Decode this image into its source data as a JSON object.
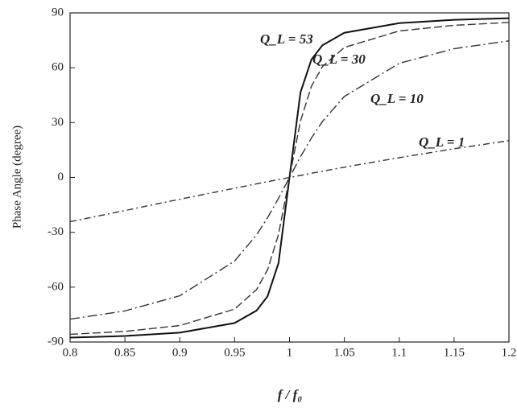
{
  "chart_data": {
    "type": "line",
    "x_label": "f / f₀",
    "y_label": "Phase Angle (degree)",
    "x": [
      0.8,
      0.85,
      0.9,
      0.95,
      0.97,
      0.98,
      0.99,
      1,
      1.01,
      1.02,
      1.03,
      1.05,
      1.1,
      1.15,
      1.2
    ],
    "series": [
      {
        "name": "Q_L = 53",
        "color": "#111",
        "dash": "none",
        "values": [
          -87.6,
          -86.7,
          -84.9,
          -79.6,
          -72.8,
          -65.0,
          -46.8,
          0,
          46.5,
          64.5,
          72.3,
          79.1,
          84.4,
          86.2,
          87.1
        ]
      },
      {
        "name": "Q_L = 30",
        "color": "#333",
        "dash": "10 4",
        "values": [
          -85.8,
          -84.2,
          -81.0,
          -72.0,
          -61.3,
          -50.5,
          -31.1,
          0,
          30.8,
          49.9,
          60.6,
          71.1,
          80.1,
          83.2,
          84.8
        ]
      },
      {
        "name": "Q_L = 10",
        "color": "#333",
        "dash": "12 4 2 4",
        "values": [
          -77.5,
          -73.0,
          -64.7,
          -45.7,
          -31.4,
          -22.0,
          -11.4,
          0,
          11.3,
          21.6,
          30.6,
          44.3,
          62.4,
          70.4,
          74.7
        ]
      },
      {
        "name": "Q_L = 1",
        "color": "#333",
        "dash": "8 4 2 4",
        "values": [
          -24.2,
          -18.1,
          -11.9,
          -5.9,
          -3.5,
          -2.3,
          -1.2,
          0,
          1.1,
          2.3,
          3.4,
          5.6,
          10.8,
          15.7,
          20.1
        ]
      }
    ],
    "xlim": [
      0.8,
      1.2
    ],
    "xticks": [
      0.8,
      0.85,
      0.9,
      0.95,
      1,
      1.05,
      1.1,
      1.15,
      1.2
    ],
    "ylim": [
      -90,
      90
    ],
    "yticks": [
      -90,
      -60,
      -30,
      0,
      30,
      60,
      90
    ],
    "grid": false
  }
}
